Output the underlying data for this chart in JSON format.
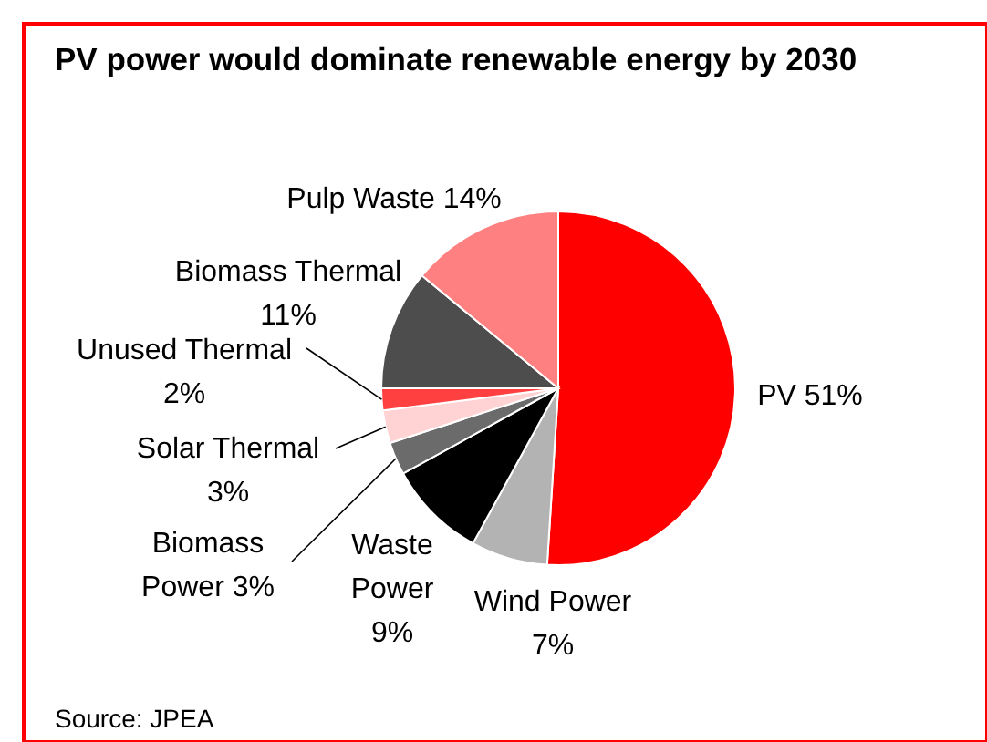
{
  "chart_data": {
    "type": "pie",
    "title": "PV power would dominate renewable energy by 2030",
    "categories": [
      "PV",
      "Wind Power",
      "Waste Power",
      "Biomass Power",
      "Solar Thermal",
      "Unused Thermal",
      "Biomass Thermal",
      "Pulp Waste"
    ],
    "values": [
      51,
      7,
      9,
      3,
      3,
      2,
      11,
      14
    ],
    "value_labels": [
      "51%",
      "7%",
      "9%",
      "3%",
      "3%",
      "2%",
      "11%",
      "14%"
    ],
    "colors": [
      "#ff0000",
      "#b3b3b3",
      "#000000",
      "#6b6b6b",
      "#ffd3d3",
      "#ff4040",
      "#4d4d4d",
      "#ff8080"
    ],
    "legend": false,
    "annotations": [
      "Source: JPEA"
    ]
  }
}
